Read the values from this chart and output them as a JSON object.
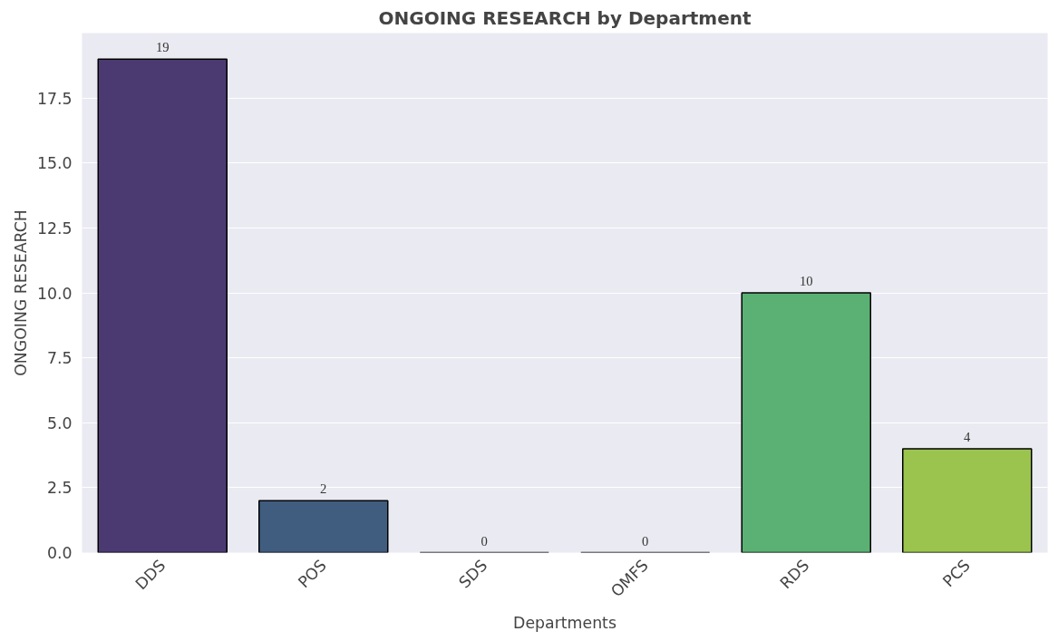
{
  "chart_data": {
    "type": "bar",
    "title": "ONGOING RESEARCH by Department",
    "xlabel": "Departments",
    "ylabel": "ONGOING RESEARCH",
    "categories": [
      "DDS",
      "POS",
      "SDS",
      "OMFS",
      "RDS",
      "PCS"
    ],
    "values": [
      19,
      2,
      0,
      0,
      10,
      4
    ],
    "colors": [
      "#4b3a72",
      "#405d80",
      "#33808c",
      "#2a9a88",
      "#5ab173",
      "#9bc44e"
    ],
    "ylim": [
      0,
      20
    ],
    "yticks": [
      {
        "value": 0,
        "label": "0.0"
      },
      {
        "value": 2.5,
        "label": "2.5"
      },
      {
        "value": 5,
        "label": "5.0"
      },
      {
        "value": 7.5,
        "label": "7.5"
      },
      {
        "value": 10,
        "label": "10.0"
      },
      {
        "value": 12.5,
        "label": "12.5"
      },
      {
        "value": 15,
        "label": "15.0"
      },
      {
        "value": 17.5,
        "label": "17.5"
      }
    ],
    "grid": "y",
    "data_labels": true
  }
}
